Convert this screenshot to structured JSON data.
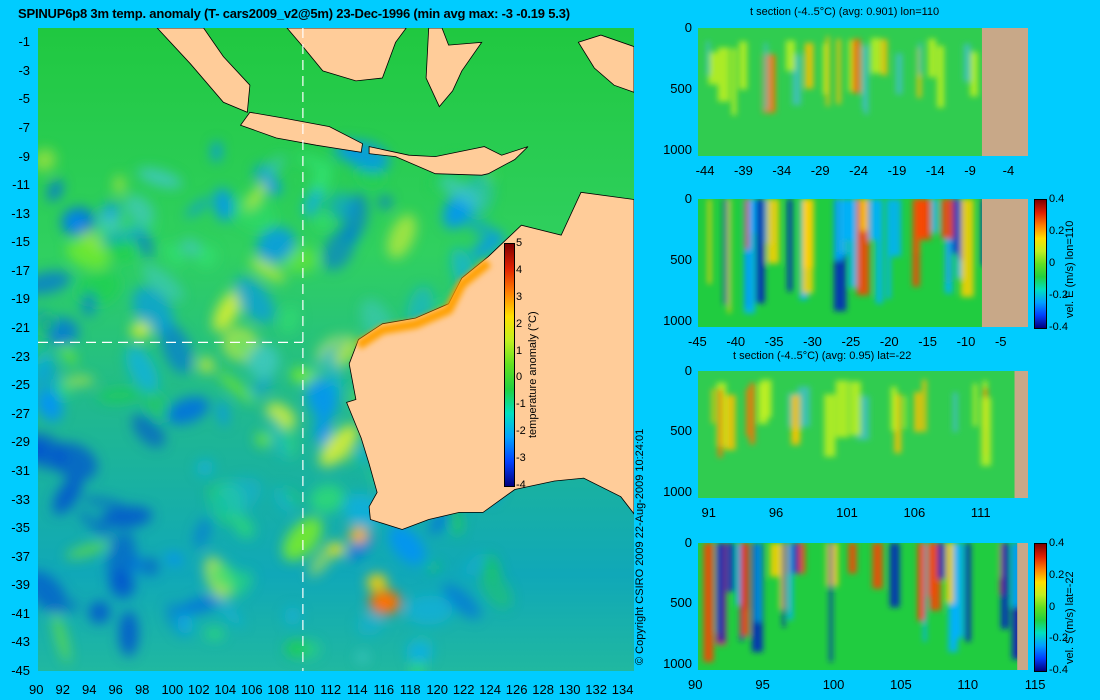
{
  "main_title": "SPINUP6p8 3m temp. anomaly (T- cars2009_v2@5m) 23-Dec-1996 (min avg max: -3 -0.19 5.3)",
  "copyright": "© Copyright CSIRO 2009   22-Aug-2009 10:24:01",
  "colors": {
    "background": "#00ccff",
    "land": "#ffcc99",
    "section_land": "#c8a888",
    "colormap": [
      "#00007f",
      "#0040ff",
      "#00a0ff",
      "#00e0c0",
      "#20d040",
      "#60e020",
      "#c0f020",
      "#ffe000",
      "#ff8000",
      "#e02000",
      "#800000"
    ]
  },
  "chart_data": [
    {
      "type": "heatmap",
      "id": "map",
      "title": "SPINUP6p8 3m temp. anomaly (T- cars2009_v2@5m) 23-Dec-1996 (min avg max: -3 -0.19 5.3)",
      "xlim": [
        90,
        135
      ],
      "ylim": [
        -45,
        0
      ],
      "x_ticks": [
        "90",
        "92",
        "94",
        "96",
        "98",
        "100",
        "102",
        "104",
        "106",
        "108",
        "110",
        "112",
        "114",
        "116",
        "118",
        "120",
        "122",
        "124",
        "126",
        "128",
        "130",
        "132",
        "134"
      ],
      "y_ticks": [
        "-1",
        "-3",
        "-5",
        "-7",
        "-9",
        "-11",
        "-13",
        "-15",
        "-17",
        "-19",
        "-21",
        "-23",
        "-25",
        "-27",
        "-29",
        "-31",
        "-33",
        "-35",
        "-37",
        "-39",
        "-41",
        "-43",
        "-45"
      ],
      "section_lon": 110,
      "section_lat": -22,
      "colorbar": {
        "label": "temperature anomaly (°C)",
        "range": [
          -4,
          5
        ],
        "ticks": [
          "5",
          "4",
          "3",
          "2",
          "1",
          "0",
          "-1",
          "-2",
          "-3",
          "-4"
        ]
      },
      "min": -3,
      "avg": -0.19,
      "max": 5.3
    },
    {
      "type": "heatmap",
      "id": "t_lon110",
      "title": "t section (-4..5°C) (avg: 0.901) lon=110",
      "xlim": [
        -45,
        -2
      ],
      "ylim": [
        1050,
        0
      ],
      "x_ticks": [
        "-44",
        "-39",
        "-34",
        "-29",
        "-24",
        "-19",
        "-14",
        "-9",
        "-4"
      ],
      "y_ticks": [
        "0",
        "500",
        "1000"
      ]
    },
    {
      "type": "heatmap",
      "id": "u_lon110",
      "title": "",
      "xlim": [
        -45,
        -2
      ],
      "ylim": [
        1050,
        0
      ],
      "x_ticks": [
        "-45",
        "-40",
        "-35",
        "-30",
        "-25",
        "-20",
        "-15",
        "-10",
        "-5"
      ],
      "y_ticks": [
        "0",
        "500",
        "1000"
      ],
      "colorbar": {
        "label": "vel. E (m/s) lon=110",
        "range": [
          -0.4,
          0.4
        ],
        "ticks": [
          "0.4",
          "0.2",
          "0",
          "-0.2",
          "-0.4"
        ]
      }
    },
    {
      "type": "heatmap",
      "id": "t_lat22",
      "title": "t section (-4..5°C) (avg: 0.95) lat=-22",
      "xlim": [
        90,
        114.5
      ],
      "ylim": [
        1050,
        0
      ],
      "x_ticks": [
        "91",
        "96",
        "101",
        "106",
        "111"
      ],
      "y_ticks": [
        "0",
        "500",
        "1000"
      ]
    },
    {
      "type": "heatmap",
      "id": "v_lat22",
      "title": "",
      "xlim": [
        90,
        114.5
      ],
      "ylim": [
        1050,
        0
      ],
      "x_ticks": [
        "90",
        "95",
        "100",
        "105",
        "110",
        "115"
      ],
      "y_ticks": [
        "0",
        "500",
        "1000"
      ],
      "colorbar": {
        "label": "vel. S (m/s) lat=-22",
        "range": [
          -0.4,
          0.4
        ],
        "ticks": [
          "0.4",
          "0.2",
          "0",
          "-0.2",
          "-0.4"
        ]
      }
    }
  ]
}
